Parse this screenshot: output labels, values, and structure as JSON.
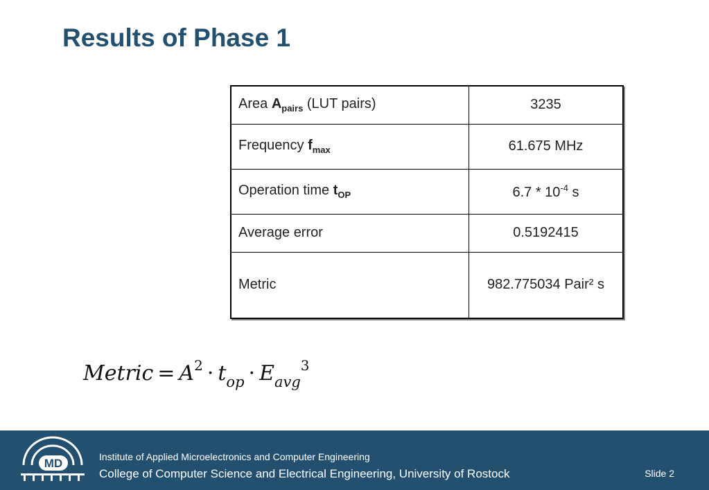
{
  "title": "Results of Phase 1",
  "table": {
    "rows": [
      {
        "label": "Area ",
        "symbol": "A",
        "subscript": "pairs",
        "suffix": " (LUT pairs)",
        "value": "3235"
      },
      {
        "label": "Frequency ",
        "symbol": "f",
        "subscript": "max",
        "value": "61.675 MHz"
      },
      {
        "label": "Operation time ",
        "symbol": "t",
        "subscript": "OP",
        "value_base": "6.7 * 10",
        "value_exp": "-4",
        "value_unit": " s"
      },
      {
        "label": "Average error",
        "value": "0.5192415"
      },
      {
        "label": "Metric",
        "value": "982.775034 Pair² s"
      }
    ]
  },
  "formula": {
    "lhs": "Metric",
    "eq": "=",
    "a": "A",
    "a_exp": "2",
    "dot": "·",
    "t": "t",
    "t_sub": "op",
    "e": "E",
    "e_sub": "avg",
    "e_exp": "3"
  },
  "footer": {
    "logo_text": "MD",
    "institute": "Institute of Applied Microelectronics and Computer Engineering",
    "college": "College of Computer Science and Electrical Engineering, University of Rostock",
    "slide": "Slide 2"
  }
}
